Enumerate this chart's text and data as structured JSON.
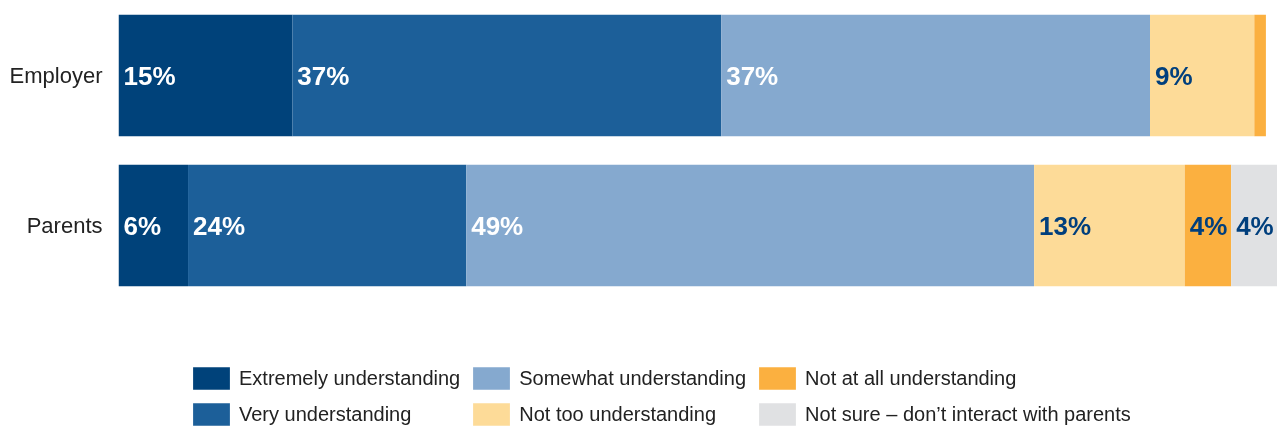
{
  "chart_data": {
    "type": "bar",
    "orientation": "horizontal",
    "stacked": true,
    "categories": [
      "Employer",
      "Parents"
    ],
    "xlim": [
      0,
      100
    ],
    "series": [
      {
        "name": "Extremely understanding",
        "color": "#00427a",
        "values": [
          15,
          6
        ],
        "value_labels": [
          "15%",
          "6%"
        ]
      },
      {
        "name": "Very understanding",
        "color": "#1c5f99",
        "values": [
          37,
          24
        ],
        "value_labels": [
          "37%",
          "24%"
        ]
      },
      {
        "name": "Somewhat understanding",
        "color": "#85a9cf",
        "values": [
          37,
          49
        ],
        "value_labels": [
          "37%",
          "49%"
        ]
      },
      {
        "name": "Not too understanding",
        "color": "#fddb98",
        "values": [
          9,
          13
        ],
        "value_labels": [
          "9%",
          "13%"
        ]
      },
      {
        "name": "Not at all understanding",
        "color": "#fbb040",
        "values": [
          1,
          4
        ],
        "value_labels": [
          null,
          "4%"
        ]
      },
      {
        "name": "Not sure – don’t interact with parents",
        "color": "#e0e1e3",
        "values": [
          null,
          4
        ],
        "value_labels": [
          null,
          "4%"
        ]
      }
    ],
    "legend": "bottom",
    "grid": false,
    "tick_labels": "y"
  }
}
